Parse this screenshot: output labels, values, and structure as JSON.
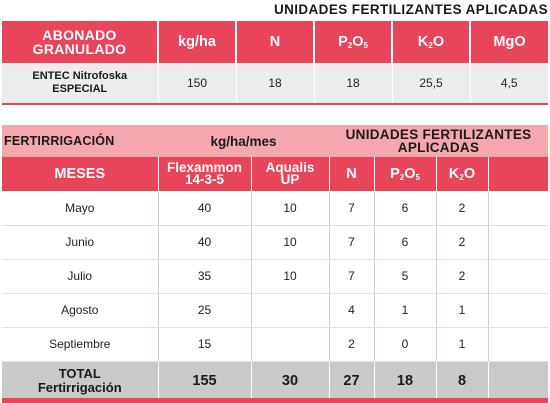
{
  "table1": {
    "title": "UNIDADES FERTILIZANTES APLICADAS",
    "header": {
      "name_line1": "ABONADO",
      "name_line2": "GRANULADO",
      "rate": "kg/ha",
      "n": "N",
      "p_main": "P",
      "p_sub1": "2",
      "p_o": "O",
      "p_sub2": "5",
      "k_main": "K",
      "k_sub": "2",
      "k_o": "O",
      "mg": "MgO"
    },
    "row": {
      "name_line1": "ENTEC Nitrofoska",
      "name_line2": "ESPECIAL",
      "rate": "150",
      "n": "18",
      "p": "18",
      "k": "25,5",
      "mg": "4,5"
    }
  },
  "table2": {
    "top": {
      "label": "FERTIRRIGACIÓN",
      "rate": "kg/ha/mes",
      "units_line1": "UNIDADES FERTILIZANTES",
      "units_line2": "APLICADAS"
    },
    "header": {
      "month": "MESES",
      "flex_line1": "Flexammon",
      "flex_line2": "14-3-5",
      "aqualis_line1": "Aqualis",
      "aqualis_line2": "UP",
      "n": "N",
      "p_main": "P",
      "p_sub1": "2",
      "p_o": "O",
      "p_sub2": "5",
      "k_main": "K",
      "k_sub": "2",
      "k_o": "O"
    },
    "rows": [
      {
        "month": "Mayo",
        "flex": "40",
        "aqualis": "10",
        "n": "7",
        "p": "6",
        "k": "2"
      },
      {
        "month": "Junio",
        "flex": "40",
        "aqualis": "10",
        "n": "7",
        "p": "6",
        "k": "2"
      },
      {
        "month": "Julio",
        "flex": "35",
        "aqualis": "10",
        "n": "7",
        "p": "5",
        "k": "2"
      },
      {
        "month": "Agosto",
        "flex": "25",
        "aqualis": "",
        "n": "4",
        "p": "1",
        "k": "1"
      },
      {
        "month": "Septiembre",
        "flex": "15",
        "aqualis": "",
        "n": "2",
        "p": "0",
        "k": "1"
      }
    ],
    "total": {
      "label_line1": "TOTAL",
      "label_line2": "Fertirrigación",
      "flex": "155",
      "aqualis": "30",
      "n": "27",
      "p": "18",
      "k": "8"
    }
  },
  "colors": {
    "accent_red": "#e8445a",
    "light_pink": "#f4a8ae",
    "row_grey": "#ececec",
    "total_grey": "#c9c9c9"
  }
}
